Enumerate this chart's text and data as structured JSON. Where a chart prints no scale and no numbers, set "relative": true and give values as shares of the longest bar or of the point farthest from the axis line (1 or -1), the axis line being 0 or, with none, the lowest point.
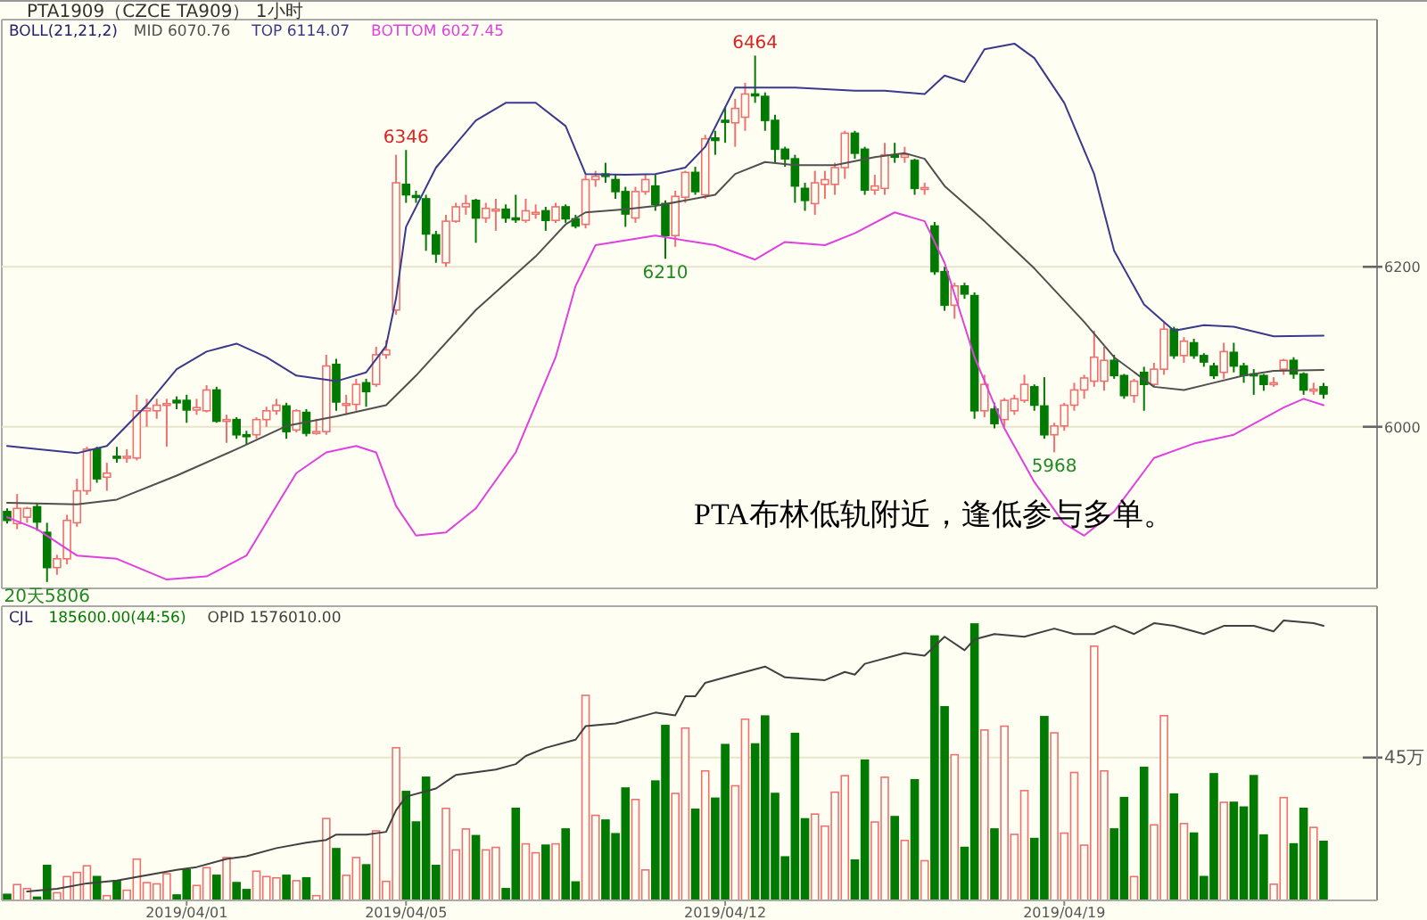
{
  "chart_data": [
    {
      "type": "candlestick",
      "title": "PTA1909（CZCE TA909） 1小时",
      "legend_title": "BOLL(21,21,2)",
      "legend": "top left",
      "grid": "y",
      "tick_labels": "y",
      "categories": [
        null,
        null,
        null,
        null,
        null,
        null,
        null,
        null,
        null,
        null,
        null,
        null,
        null,
        null,
        null,
        null,
        null,
        null,
        "2019/04/01",
        null,
        null,
        null,
        null,
        null,
        null,
        null,
        null,
        null,
        null,
        null,
        null,
        null,
        null,
        null,
        null,
        null,
        null,
        null,
        null,
        null,
        "2019/04/05",
        null,
        null,
        null,
        null,
        null,
        null,
        null,
        null,
        null,
        null,
        null,
        null,
        null,
        null,
        null,
        null,
        null,
        null,
        null,
        null,
        null,
        null,
        null,
        null,
        null,
        null,
        null,
        null,
        null,
        null,
        null,
        "2019/04/12",
        null,
        null,
        null,
        null,
        null,
        null,
        null,
        null,
        null,
        null,
        null,
        null,
        null,
        null,
        null,
        null,
        null,
        null,
        null,
        null,
        null,
        null,
        null,
        null,
        null,
        null,
        null,
        null,
        null,
        null,
        null,
        null,
        null,
        "2019/04/19",
        null,
        null,
        null,
        null,
        null,
        null,
        null,
        null,
        null,
        null,
        null,
        null,
        null,
        null,
        null,
        null,
        null,
        null,
        null,
        null,
        null,
        null,
        null,
        null,
        null,
        null
      ],
      "ohlc": [
        [
          5894,
          5898,
          5879,
          5883
        ],
        [
          5879,
          5916,
          5872,
          5898
        ],
        [
          5887,
          5900,
          5880,
          5898
        ],
        [
          5900,
          5905,
          5870,
          5881
        ],
        [
          5868,
          5880,
          5806,
          5824
        ],
        [
          5824,
          5840,
          5815,
          5835
        ],
        [
          5835,
          5890,
          5828,
          5883
        ],
        [
          5880,
          5935,
          5875,
          5920
        ],
        [
          5920,
          5975,
          5915,
          5972
        ],
        [
          5972,
          5975,
          5930,
          5935
        ],
        [
          5937,
          5955,
          5920,
          5942
        ],
        [
          5963,
          5975,
          5955,
          5962
        ],
        [
          5962,
          5972,
          5955,
          5963
        ],
        [
          5961,
          6040,
          5958,
          6020
        ],
        [
          6020,
          6035,
          6000,
          6023
        ],
        [
          6020,
          6035,
          6010,
          6027
        ],
        [
          6027,
          6035,
          5975,
          6029
        ],
        [
          6033,
          6038,
          6022,
          6030
        ],
        [
          6033,
          6040,
          6005,
          6021
        ],
        [
          6021,
          6035,
          6015,
          6024
        ],
        [
          6020,
          6052,
          6018,
          6046
        ],
        [
          6046,
          6050,
          6005,
          6007
        ],
        [
          6008,
          6015,
          5980,
          6009
        ],
        [
          6009,
          6012,
          5985,
          5990
        ],
        [
          5990,
          5995,
          5978,
          5988
        ],
        [
          5990,
          6012,
          5985,
          6009
        ],
        [
          6009,
          6025,
          6000,
          6020
        ],
        [
          6020,
          6035,
          6015,
          6027
        ],
        [
          6026,
          6030,
          5985,
          5994
        ],
        [
          5996,
          6022,
          5993,
          6020
        ],
        [
          6018,
          6022,
          5988,
          5992
        ],
        [
          5992,
          6010,
          5990,
          5994
        ],
        [
          5994,
          6090,
          5990,
          6076
        ],
        [
          6078,
          6085,
          6020,
          6031
        ],
        [
          6029,
          6040,
          6015,
          6029
        ],
        [
          6028,
          6060,
          6020,
          6053
        ],
        [
          6055,
          6060,
          6025,
          6044
        ],
        [
          6053,
          6100,
          6050,
          6090
        ],
        [
          6090,
          6108,
          6085,
          6096
        ],
        [
          6146,
          6340,
          6140,
          6305
        ],
        [
          6303,
          6346,
          6280,
          6290
        ],
        [
          6289,
          6295,
          6280,
          6287
        ],
        [
          6285,
          6290,
          6220,
          6241
        ],
        [
          6240,
          6245,
          6205,
          6216
        ],
        [
          6205,
          6265,
          6200,
          6257
        ],
        [
          6257,
          6280,
          6255,
          6275
        ],
        [
          6275,
          6290,
          6265,
          6279
        ],
        [
          6283,
          6285,
          6230,
          6261
        ],
        [
          6261,
          6280,
          6255,
          6273
        ],
        [
          6272,
          6285,
          6245,
          6272
        ],
        [
          6272,
          6278,
          6255,
          6261
        ],
        [
          6261,
          6290,
          6255,
          6260
        ],
        [
          6258,
          6285,
          6255,
          6270
        ],
        [
          6268,
          6278,
          6260,
          6268
        ],
        [
          6270,
          6275,
          6245,
          6258
        ],
        [
          6258,
          6280,
          6255,
          6275
        ],
        [
          6275,
          6278,
          6255,
          6260
        ],
        [
          6260,
          6265,
          6248,
          6251
        ],
        [
          6253,
          6315,
          6248,
          6309
        ],
        [
          6309,
          6320,
          6300,
          6313
        ],
        [
          6316,
          6330,
          6305,
          6313
        ],
        [
          6309,
          6315,
          6285,
          6294
        ],
        [
          6294,
          6300,
          6250,
          6266
        ],
        [
          6261,
          6300,
          6255,
          6294
        ],
        [
          6294,
          6315,
          6290,
          6309
        ],
        [
          6301,
          6315,
          6270,
          6278
        ],
        [
          6279,
          6283,
          6210,
          6239
        ],
        [
          6239,
          6295,
          6225,
          6288
        ],
        [
          6287,
          6320,
          6280,
          6318
        ],
        [
          6318,
          6325,
          6290,
          6294
        ],
        [
          6290,
          6365,
          6285,
          6360
        ],
        [
          6361,
          6370,
          6340,
          6358
        ],
        [
          6383,
          6400,
          6355,
          6381
        ],
        [
          6380,
          6410,
          6350,
          6398
        ],
        [
          6387,
          6430,
          6370,
          6416
        ],
        [
          6416,
          6464,
          6405,
          6414
        ],
        [
          6413,
          6418,
          6370,
          6383
        ],
        [
          6383,
          6390,
          6330,
          6347
        ],
        [
          6347,
          6350,
          6325,
          6335
        ],
        [
          6335,
          6340,
          6280,
          6301
        ],
        [
          6298,
          6305,
          6270,
          6283
        ],
        [
          6279,
          6320,
          6265,
          6305
        ],
        [
          6303,
          6320,
          6285,
          6309
        ],
        [
          6303,
          6330,
          6290,
          6324
        ],
        [
          6324,
          6370,
          6310,
          6367
        ],
        [
          6367,
          6370,
          6335,
          6342
        ],
        [
          6347,
          6350,
          6290,
          6296
        ],
        [
          6296,
          6315,
          6290,
          6301
        ],
        [
          6298,
          6355,
          6290,
          6340
        ],
        [
          6340,
          6355,
          6330,
          6337
        ],
        [
          6337,
          6350,
          6330,
          6340
        ],
        [
          6333,
          6335,
          6290,
          6298
        ],
        [
          6297,
          6305,
          6290,
          6299
        ],
        [
          6251,
          6256,
          6190,
          6194
        ],
        [
          6194,
          6200,
          6145,
          6152
        ],
        [
          6152,
          6180,
          6135,
          6176
        ],
        [
          6176,
          6180,
          6160,
          6166
        ],
        [
          6164,
          6168,
          6010,
          6020
        ],
        [
          6020,
          6065,
          6012,
          6053
        ],
        [
          6022,
          6030,
          5998,
          6004
        ],
        [
          6009,
          6036,
          6000,
          6033
        ],
        [
          6020,
          6040,
          6015,
          6035
        ],
        [
          6033,
          6065,
          6030,
          6053
        ],
        [
          6050,
          6053,
          6020,
          6027
        ],
        [
          6026,
          6062,
          5985,
          5990
        ],
        [
          5990,
          6005,
          5968,
          6001
        ],
        [
          6001,
          6030,
          5995,
          6027
        ],
        [
          6027,
          6055,
          6020,
          6046
        ],
        [
          6046,
          6065,
          6035,
          6061
        ],
        [
          6057,
          6120,
          6050,
          6087
        ],
        [
          6057,
          6100,
          6045,
          6083
        ],
        [
          6083,
          6090,
          6060,
          6064
        ],
        [
          6064,
          6066,
          6035,
          6039
        ],
        [
          6039,
          6060,
          6030,
          6057
        ],
        [
          6068,
          6075,
          6020,
          6053
        ],
        [
          6053,
          6080,
          6050,
          6072
        ],
        [
          6072,
          6130,
          6065,
          6122
        ],
        [
          6122,
          6125,
          6085,
          6089
        ],
        [
          6089,
          6112,
          6080,
          6107
        ],
        [
          6105,
          6110,
          6085,
          6089
        ],
        [
          6089,
          6092,
          6075,
          6081
        ],
        [
          6076,
          6080,
          6060,
          6064
        ],
        [
          6068,
          6105,
          6060,
          6094
        ],
        [
          6093,
          6105,
          6068,
          6076
        ],
        [
          6076,
          6080,
          6055,
          6064
        ],
        [
          6066,
          6072,
          6040,
          6065
        ],
        [
          6064,
          6066,
          6045,
          6053
        ],
        [
          6054,
          6062,
          6050,
          6055
        ],
        [
          6072,
          6085,
          6065,
          6083
        ],
        [
          6083,
          6087,
          6060,
          6066
        ],
        [
          6066,
          6068,
          6040,
          6046
        ],
        [
          6045,
          6055,
          6040,
          6047
        ],
        [
          6050,
          6055,
          6035,
          6041
        ]
      ],
      "colors": [
        "#007a00",
        "#f07070",
        "#f07070",
        "#007a00",
        "#007a00",
        "#f07070",
        "#f07070",
        "#f07070",
        "#f07070",
        "#007a00",
        "#f07070",
        "#007a00",
        "#f07070",
        "#f07070",
        "#f07070",
        "#f07070",
        "#f07070",
        "#007a00",
        "#007a00",
        "#f07070",
        "#f07070",
        "#007a00",
        "#f07070",
        "#007a00",
        "#007a00",
        "#f07070",
        "#f07070",
        "#f07070",
        "#007a00",
        "#f07070",
        "#007a00",
        "#f07070",
        "#f07070",
        "#007a00",
        "#f07070",
        "#f07070",
        "#007a00",
        "#f07070",
        "#f07070",
        "#f07070",
        "#007a00",
        "#007a00",
        "#007a00",
        "#007a00",
        "#f07070",
        "#f07070",
        "#f07070",
        "#007a00",
        "#f07070",
        "#f07070",
        "#007a00",
        "#007a00",
        "#f07070",
        "#f07070",
        "#007a00",
        "#f07070",
        "#007a00",
        "#007a00",
        "#f07070",
        "#f07070",
        "#007a00",
        "#007a00",
        "#007a00",
        "#f07070",
        "#f07070",
        "#007a00",
        "#007a00",
        "#f07070",
        "#f07070",
        "#007a00",
        "#f07070",
        "#007a00",
        "#007a00",
        "#f07070",
        "#f07070",
        "#007a00",
        "#007a00",
        "#007a00",
        "#007a00",
        "#007a00",
        "#007a00",
        "#f07070",
        "#f07070",
        "#f07070",
        "#f07070",
        "#007a00",
        "#007a00",
        "#f07070",
        "#f07070",
        "#007a00",
        "#f07070",
        "#007a00",
        "#f07070",
        "#007a00",
        "#007a00",
        "#f07070",
        "#007a00",
        "#007a00",
        "#f07070",
        "#007a00",
        "#f07070",
        "#f07070",
        "#f07070",
        "#007a00",
        "#007a00",
        "#f07070",
        "#f07070",
        "#f07070",
        "#f07070",
        "#f07070",
        "#f07070",
        "#007a00",
        "#007a00",
        "#f07070",
        "#007a00",
        "#f07070",
        "#f07070",
        "#007a00",
        "#f07070",
        "#007a00",
        "#007a00",
        "#007a00",
        "#f07070",
        "#007a00",
        "#007a00",
        "#007a00",
        "#007a00",
        "#f07070",
        "#f07070",
        "#007a00",
        "#007a00",
        "#f07070",
        "#007a00"
      ],
      "series": [
        {
          "name": "MID 6070.76",
          "type": "line",
          "color": "#505050",
          "values": [
            5905,
            null,
            null,
            null,
            null,
            null,
            null,
            5903,
            null,
            null,
            null,
            5909,
            null,
            null,
            null,
            null,
            null,
            5939,
            null,
            null,
            null,
            null,
            null,
            5972,
            null,
            null,
            null,
            null,
            6001,
            null,
            null,
            null,
            null,
            6013,
            null,
            null,
            null,
            null,
            6027,
            null,
            null,
            6064,
            null,
            null,
            null,
            null,
            null,
            6146,
            null,
            null,
            null,
            null,
            null,
            6213,
            null,
            null,
            6253,
            null,
            6268,
            null,
            null,
            null,
            6272,
            null,
            null,
            6276,
            null,
            null,
            null,
            null,
            null,
            6290,
            null,
            6316,
            null,
            null,
            6331,
            null,
            null,
            6327,
            null,
            null,
            null,
            6327,
            null,
            null,
            null,
            6337,
            null,
            null,
            6342,
            null,
            6335,
            null,
            6301,
            null,
            null,
            null,
            6257,
            null,
            null,
            null,
            null,
            6198,
            null,
            null,
            null,
            null,
            6131,
            null,
            null,
            6087,
            null,
            null,
            null,
            6050,
            null,
            null,
            6046,
            null,
            null,
            6055,
            null,
            null,
            6064,
            null,
            null,
            6070,
            null,
            null,
            null,
            null,
            6071
          ]
        },
        {
          "name": "TOP 6114.07",
          "type": "line",
          "color": "#3a3a8c",
          "values": [
            5976,
            null,
            null,
            5972,
            null,
            null,
            null,
            5967,
            null,
            null,
            5976,
            null,
            null,
            null,
            6027,
            null,
            null,
            6072,
            null,
            null,
            6094,
            null,
            null,
            6104,
            null,
            null,
            6087,
            null,
            null,
            6064,
            null,
            null,
            null,
            6057,
            null,
            null,
            6068,
            null,
            6101,
            6161,
            6250,
            null,
            null,
            6324,
            null,
            null,
            null,
            6383,
            null,
            null,
            6405,
            null,
            null,
            6405,
            null,
            null,
            6376,
            null,
            6316,
            null,
            null,
            null,
            6315,
            null,
            null,
            6316,
            null,
            null,
            6324,
            null,
            6350,
            null,
            null,
            6424,
            null,
            6424,
            null,
            null,
            null,
            6424,
            null,
            null,
            null,
            null,
            null,
            6420,
            null,
            null,
            6420,
            null,
            null,
            null,
            6416,
            null,
            6439,
            null,
            6431,
            null,
            6472,
            null,
            null,
            6479,
            null,
            6461,
            null,
            null,
            6405,
            null,
            null,
            6316,
            null,
            6220,
            null,
            null,
            6153,
            null,
            null,
            6120,
            null,
            null,
            6127,
            null,
            null,
            6125,
            null,
            null,
            null,
            6113,
            null,
            null,
            null,
            null,
            6114
          ]
        },
        {
          "name": "BOTTOM 6027.45",
          "type": "line",
          "color": "#e040e0",
          "values": [
            5887,
            null,
            null,
            5872,
            null,
            null,
            null,
            5839,
            null,
            null,
            null,
            5835,
            null,
            null,
            null,
            null,
            5809,
            null,
            null,
            null,
            5813,
            null,
            null,
            null,
            5839,
            null,
            null,
            5901,
            null,
            5942,
            null,
            null,
            5968,
            null,
            null,
            5976,
            null,
            5968,
            null,
            5901,
            null,
            5864,
            null,
            null,
            5868,
            null,
            null,
            5898,
            null,
            null,
            null,
            5968,
            null,
            null,
            null,
            6087,
            null,
            6176,
            null,
            6227,
            null,
            null,
            null,
            null,
            null,
            6239,
            null,
            null,
            null,
            null,
            null,
            6227,
            null,
            null,
            null,
            6209,
            null,
            null,
            6231,
            null,
            null,
            null,
            6227,
            null,
            null,
            6242,
            null,
            null,
            null,
            6268,
            null,
            null,
            6257,
            null,
            6205,
            null,
            null,
            6087,
            null,
            null,
            5998,
            null,
            null,
            5931,
            null,
            null,
            5879,
            null,
            5864,
            null,
            null,
            5894,
            null,
            null,
            null,
            5961,
            null,
            null,
            null,
            5979,
            null,
            null,
            null,
            5990,
            null,
            null,
            null,
            null,
            6024,
            null,
            6035,
            null,
            6027
          ]
        }
      ],
      "ylim": [
        5798,
        6509
      ],
      "yticks": [
        6000,
        6200
      ],
      "annotations": [
        {
          "text": "6346",
          "y": 6346
        },
        {
          "text": "6464",
          "y": 6464
        },
        {
          "text": "6210",
          "y": 6210
        },
        {
          "text": "5968",
          "y": 5968
        },
        {
          "text": "20天5806",
          "y": 5806
        },
        "PTA布林低轨附近，逢低参与多单。"
      ]
    },
    {
      "type": "bar",
      "legend_title": "CJL",
      "legend": "top left",
      "categories": [
        null,
        null,
        null,
        null,
        null,
        null,
        null,
        null,
        null,
        null,
        null,
        null,
        null,
        null,
        null,
        null,
        null,
        null,
        "2019/04/01",
        null,
        null,
        null,
        null,
        null,
        null,
        null,
        null,
        null,
        null,
        null,
        null,
        null,
        null,
        null,
        null,
        null,
        null,
        null,
        null,
        null,
        "2019/04/05",
        null,
        null,
        null,
        null,
        null,
        null,
        null,
        null,
        null,
        null,
        null,
        null,
        null,
        null,
        null,
        null,
        null,
        null,
        null,
        null,
        null,
        null,
        null,
        null,
        null,
        null,
        null,
        null,
        null,
        null,
        null,
        "2019/04/12",
        null,
        null,
        null,
        null,
        null,
        null,
        null,
        null,
        null,
        null,
        null,
        null,
        null,
        null,
        null,
        null,
        null,
        null,
        null,
        null,
        null,
        null,
        null,
        null,
        null,
        null,
        null,
        null,
        null,
        null,
        null,
        null,
        null,
        "2019/04/19",
        null,
        null,
        null,
        null,
        null,
        null,
        null,
        null,
        null,
        null,
        null,
        null,
        null,
        null,
        null,
        null,
        null,
        null,
        null,
        null,
        null,
        null,
        null,
        null,
        null,
        null
      ],
      "series": [
        {
          "name": "185600.00(44:56)",
          "type": "bar",
          "values": [
            1.9,
            5,
            3.7,
            1,
            11,
            2.4,
            7.5,
            8.8,
            10.9,
            7.5,
            1.5,
            6.2,
            3.2,
            13,
            5.6,
            5.2,
            8.4,
            1.7,
            9.6,
            4.7,
            10.3,
            7.9,
            13.5,
            5.6,
            3.4,
            9.2,
            7.5,
            7.1,
            7.9,
            6.2,
            7.1,
            1.5,
            25.8,
            16.3,
            7.9,
            13.5,
            11.2,
            21.9,
            6,
            48.1,
            34.3,
            24.7,
            38.8,
            11,
            29,
            15.9,
            22.5,
            20.4,
            15.9,
            16.7,
            3.7,
            29,
            17.8,
            15,
            17.4,
            17.8,
            22.5,
            5.8,
            64.6,
            26.8,
            25.3,
            21,
            35.4,
            31.8,
            9.6,
            37.6,
            55.1,
            33.7,
            54.3,
            28.7,
            40.8,
            32.2,
            49.1,
            36.1,
            57.1,
            49.3,
            58.1,
            33.7,
            13.7,
            52.6,
            25.7,
            27.2,
            23.4,
            34.1,
            39.3,
            12.7,
            44.2,
            24.7,
            38.8,
            26.4,
            18.9,
            38,
            12.5,
            83.3,
            61,
            45.9,
            16.7,
            87.1,
            53.7,
            22.5,
            54.9,
            20.8,
            34.6,
            19.5,
            57.9,
            52.8,
            21.2,
            40.3,
            17.4,
            80.1,
            40.8,
            22.5,
            32.4,
            7.5,
            41.9,
            23.8,
            58.2,
            33.5,
            24.2,
            21.2,
            7.5,
            39.9,
            30.9,
            30.9,
            29.4,
            39.3,
            20.6,
            5.1,
            32.4,
            17.8,
            29,
            23,
            18.6
          ],
          "colors": [
            "#007a00",
            "#f07070",
            "#f07070",
            "#007a00",
            "#007a00",
            "#f07070",
            "#f07070",
            "#f07070",
            "#f07070",
            "#007a00",
            "#f07070",
            "#007a00",
            "#f07070",
            "#f07070",
            "#f07070",
            "#f07070",
            "#f07070",
            "#007a00",
            "#007a00",
            "#f07070",
            "#f07070",
            "#007a00",
            "#f07070",
            "#007a00",
            "#007a00",
            "#f07070",
            "#f07070",
            "#f07070",
            "#007a00",
            "#f07070",
            "#007a00",
            "#f07070",
            "#f07070",
            "#007a00",
            "#f07070",
            "#f07070",
            "#007a00",
            "#f07070",
            "#f07070",
            "#f07070",
            "#007a00",
            "#007a00",
            "#007a00",
            "#007a00",
            "#f07070",
            "#f07070",
            "#f07070",
            "#007a00",
            "#f07070",
            "#f07070",
            "#007a00",
            "#007a00",
            "#f07070",
            "#f07070",
            "#007a00",
            "#f07070",
            "#007a00",
            "#007a00",
            "#f07070",
            "#f07070",
            "#007a00",
            "#007a00",
            "#007a00",
            "#f07070",
            "#f07070",
            "#007a00",
            "#007a00",
            "#f07070",
            "#f07070",
            "#007a00",
            "#f07070",
            "#007a00",
            "#007a00",
            "#f07070",
            "#f07070",
            "#007a00",
            "#007a00",
            "#007a00",
            "#007a00",
            "#007a00",
            "#007a00",
            "#f07070",
            "#f07070",
            "#f07070",
            "#f07070",
            "#007a00",
            "#007a00",
            "#f07070",
            "#f07070",
            "#007a00",
            "#f07070",
            "#007a00",
            "#f07070",
            "#007a00",
            "#007a00",
            "#f07070",
            "#007a00",
            "#007a00",
            "#f07070",
            "#007a00",
            "#f07070",
            "#f07070",
            "#f07070",
            "#007a00",
            "#007a00",
            "#f07070",
            "#f07070",
            "#f07070",
            "#f07070",
            "#f07070",
            "#f07070",
            "#007a00",
            "#007a00",
            "#f07070",
            "#007a00",
            "#f07070",
            "#f07070",
            "#007a00",
            "#f07070",
            "#007a00",
            "#007a00",
            "#007a00",
            "#f07070",
            "#007a00",
            "#007a00",
            "#007a00",
            "#007a00",
            "#f07070",
            "#f07070",
            "#007a00",
            "#007a00",
            "#f07070",
            "#007a00"
          ]
        }
      ],
      "ylim": [
        0,
        92.7
      ],
      "yticks": [
        {
          "value": 45,
          "label": "45万"
        }
      ],
      "grid": "y"
    },
    {
      "type": "line",
      "relative": true,
      "tick_labels": false,
      "legend": "top left",
      "categories": [
        null,
        null,
        null,
        null,
        null,
        null,
        null,
        null,
        null,
        null,
        null,
        null,
        null,
        null,
        null,
        null,
        null,
        null,
        "2019/04/01",
        null,
        null,
        null,
        null,
        null,
        null,
        null,
        null,
        null,
        null,
        null,
        null,
        null,
        null,
        null,
        null,
        null,
        null,
        null,
        null,
        null,
        "2019/04/05",
        null,
        null,
        null,
        null,
        null,
        null,
        null,
        null,
        null,
        null,
        null,
        null,
        null,
        null,
        null,
        null,
        null,
        null,
        null,
        null,
        null,
        null,
        null,
        null,
        null,
        null,
        null,
        null,
        null,
        null,
        null,
        "2019/04/12",
        null,
        null,
        null,
        null,
        null,
        null,
        null,
        null,
        null,
        null,
        null,
        null,
        null,
        null,
        null,
        null,
        null,
        null,
        null,
        null,
        null,
        null,
        null,
        null,
        null,
        null,
        null,
        null,
        null,
        null,
        null,
        null,
        null,
        "2019/04/19",
        null,
        null,
        null,
        null,
        null,
        null,
        null,
        null,
        null,
        null,
        null,
        null,
        null,
        null,
        null,
        null,
        null,
        null,
        null,
        null,
        null,
        null,
        null,
        null,
        null,
        null
      ],
      "series": [
        {
          "name": "OPID 1576010.00",
          "type": "line",
          "color": "#404040",
          "values": [
            null,
            null,
            0,
            null,
            null,
            0.01,
            null,
            null,
            0.03,
            null,
            null,
            0.04,
            null,
            null,
            0.06,
            null,
            null,
            0.08,
            null,
            0.09,
            null,
            null,
            0.12,
            null,
            0.13,
            null,
            null,
            0.16,
            null,
            null,
            0.18,
            null,
            0.19,
            0.21,
            null,
            null,
            0.21,
            null,
            0.22,
            0.3,
            0.35,
            null,
            null,
            0.38,
            null,
            0.43,
            null,
            null,
            null,
            0.45,
            null,
            0.47,
            0.5,
            null,
            0.53,
            null,
            null,
            0.56,
            0.61,
            null,
            null,
            0.62,
            null,
            null,
            null,
            0.66,
            null,
            0.65,
            0.72,
            0.72,
            0.77,
            null,
            null,
            0.8,
            null,
            null,
            0.83,
            null,
            0.79,
            null,
            null,
            null,
            0.78,
            null,
            0.81,
            0.8,
            0.84,
            null,
            null,
            null,
            0.88,
            null,
            0.87,
            null,
            0.94,
            null,
            0.89,
            0.93,
            null,
            0.95,
            null,
            null,
            0.94,
            null,
            null,
            0.97,
            null,
            0.95,
            null,
            0.95,
            null,
            0.98,
            null,
            0.95,
            null,
            0.99,
            null,
            0.98,
            null,
            null,
            0.95,
            null,
            0.98,
            null,
            null,
            0.98,
            null,
            0.96,
            1,
            null,
            null,
            0.99,
            0.98
          ]
        }
      ]
    }
  ]
}
